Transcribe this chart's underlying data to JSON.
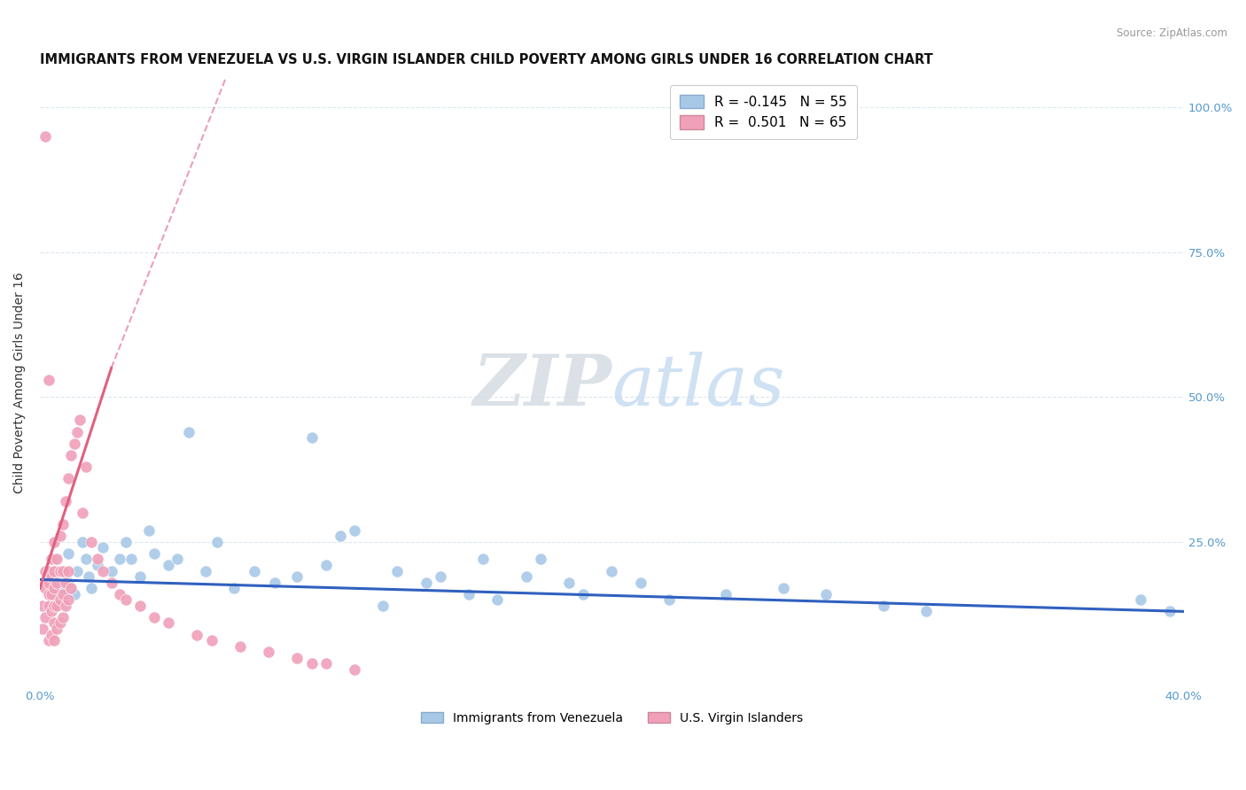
{
  "title": "IMMIGRANTS FROM VENEZUELA VS U.S. VIRGIN ISLANDER CHILD POVERTY AMONG GIRLS UNDER 16 CORRELATION CHART",
  "source": "Source: ZipAtlas.com",
  "ylabel": "Child Poverty Among Girls Under 16",
  "xlim": [
    0.0,
    0.4
  ],
  "ylim": [
    0.0,
    1.05
  ],
  "watermark_zip": "ZIP",
  "watermark_atlas": "atlas",
  "blue_color": "#a8c8e8",
  "pink_color": "#f0a0b8",
  "trendline_blue_color": "#3060c0",
  "trendline_pink_color": "#e06080",
  "grid_color": "#dce8f0",
  "title_fontsize": 10.5,
  "axis_label_fontsize": 10,
  "tick_fontsize": 9.5,
  "legend_fontsize": 11,
  "blue_scatter_x": [
    0.003,
    0.005,
    0.006,
    0.008,
    0.01,
    0.01,
    0.012,
    0.013,
    0.015,
    0.016,
    0.017,
    0.018,
    0.02,
    0.022,
    0.025,
    0.028,
    0.03,
    0.032,
    0.035,
    0.038,
    0.04,
    0.045,
    0.048,
    0.052,
    0.058,
    0.062,
    0.068,
    0.075,
    0.082,
    0.09,
    0.095,
    0.1,
    0.105,
    0.11,
    0.12,
    0.125,
    0.135,
    0.14,
    0.15,
    0.155,
    0.16,
    0.17,
    0.175,
    0.185,
    0.19,
    0.2,
    0.21,
    0.22,
    0.24,
    0.26,
    0.275,
    0.295,
    0.31,
    0.385,
    0.395
  ],
  "blue_scatter_y": [
    0.19,
    0.22,
    0.2,
    0.17,
    0.23,
    0.18,
    0.16,
    0.2,
    0.25,
    0.22,
    0.19,
    0.17,
    0.21,
    0.24,
    0.2,
    0.22,
    0.25,
    0.22,
    0.19,
    0.27,
    0.23,
    0.21,
    0.22,
    0.44,
    0.2,
    0.25,
    0.17,
    0.2,
    0.18,
    0.19,
    0.43,
    0.21,
    0.26,
    0.27,
    0.14,
    0.2,
    0.18,
    0.19,
    0.16,
    0.22,
    0.15,
    0.19,
    0.22,
    0.18,
    0.16,
    0.2,
    0.18,
    0.15,
    0.16,
    0.17,
    0.16,
    0.14,
    0.13,
    0.15,
    0.13
  ],
  "pink_scatter_x": [
    0.001,
    0.001,
    0.002,
    0.002,
    0.002,
    0.003,
    0.003,
    0.003,
    0.003,
    0.003,
    0.004,
    0.004,
    0.004,
    0.004,
    0.004,
    0.005,
    0.005,
    0.005,
    0.005,
    0.005,
    0.005,
    0.006,
    0.006,
    0.006,
    0.006,
    0.007,
    0.007,
    0.007,
    0.007,
    0.008,
    0.008,
    0.008,
    0.008,
    0.009,
    0.009,
    0.009,
    0.01,
    0.01,
    0.01,
    0.011,
    0.011,
    0.012,
    0.013,
    0.014,
    0.015,
    0.016,
    0.018,
    0.02,
    0.022,
    0.025,
    0.028,
    0.03,
    0.035,
    0.04,
    0.045,
    0.055,
    0.06,
    0.07,
    0.08,
    0.09,
    0.095,
    0.1,
    0.11,
    0.003,
    0.002
  ],
  "pink_scatter_y": [
    0.14,
    0.1,
    0.12,
    0.17,
    0.2,
    0.08,
    0.14,
    0.16,
    0.18,
    0.2,
    0.09,
    0.13,
    0.16,
    0.19,
    0.22,
    0.08,
    0.11,
    0.14,
    0.17,
    0.2,
    0.25,
    0.1,
    0.14,
    0.18,
    0.22,
    0.11,
    0.15,
    0.2,
    0.26,
    0.12,
    0.16,
    0.2,
    0.28,
    0.14,
    0.18,
    0.32,
    0.15,
    0.2,
    0.36,
    0.17,
    0.4,
    0.42,
    0.44,
    0.46,
    0.3,
    0.38,
    0.25,
    0.22,
    0.2,
    0.18,
    0.16,
    0.15,
    0.14,
    0.12,
    0.11,
    0.09,
    0.08,
    0.07,
    0.06,
    0.05,
    0.04,
    0.04,
    0.03,
    0.53,
    0.95
  ],
  "trendline_blue_x0": 0.0,
  "trendline_blue_x1": 0.4,
  "trendline_blue_y0": 0.185,
  "trendline_blue_y1": 0.13,
  "trendline_pink_solid_x0": 0.0,
  "trendline_pink_solid_x1": 0.025,
  "trendline_pink_solid_y0": 0.17,
  "trendline_pink_solid_y1": 0.55,
  "trendline_pink_dash_x0": 0.025,
  "trendline_pink_dash_x1": 0.065,
  "trendline_pink_dash_y0": 0.55,
  "trendline_pink_dash_y1": 1.05
}
